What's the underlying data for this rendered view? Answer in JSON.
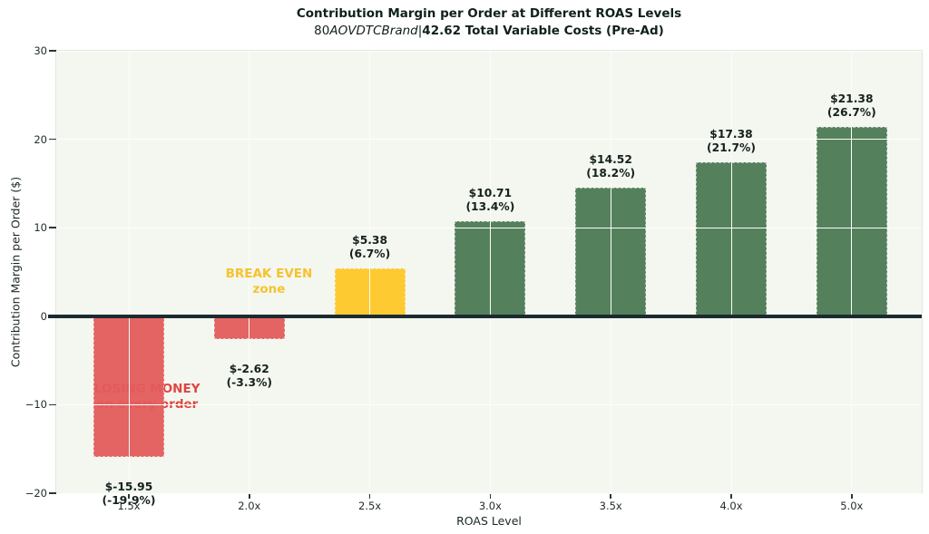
{
  "window": {
    "kind": "static-chart-figure",
    "background": "#ffffff"
  },
  "colors": {
    "plot_background": "#f4f7f0",
    "gridline": "#fcfefa",
    "zero_line": "#1b2b30",
    "bar_negative_red": "#e45c5c",
    "bar_breakeven_yellow": "#fec828",
    "bar_positive_green": "#4d7a55",
    "label_text": "#14211e",
    "tick_text": "#232e2b",
    "annotation_losing": "#e04440",
    "annotation_breakeven": "#f5c32e"
  },
  "chart_data": {
    "type": "bar",
    "title": "Contribution Margin per Order at Different ROAS Levels",
    "subtitle_segments": [
      {
        "text": "80",
        "style": "regular"
      },
      {
        "text": "AOVDTCBrand",
        "style": "italic"
      },
      {
        "text": "|",
        "style": "regular"
      },
      {
        "text": "42.62 Total Variable Costs (Pre-Ad)",
        "style": "bold"
      }
    ],
    "xlabel": "ROAS Level",
    "ylabel": "Contribution Margin per Order ($)",
    "categories": [
      "1.5x",
      "2.0x",
      "2.5x",
      "3.0x",
      "3.5x",
      "4.0x",
      "5.0x"
    ],
    "values": [
      -15.95,
      -2.62,
      5.38,
      10.71,
      14.52,
      17.38,
      21.38
    ],
    "value_labels": [
      "$-15.95",
      "$-2.62",
      "$5.38",
      "$10.71",
      "$14.52",
      "$17.38",
      "$21.38"
    ],
    "pct_labels": [
      "(-19.9%)",
      "(-3.3%)",
      "(6.7%)",
      "(13.4%)",
      "(18.2%)",
      "(21.7%)",
      "(26.7%)"
    ],
    "bar_colors": [
      "#e45c5c",
      "#e45c5c",
      "#fec828",
      "#4d7a55",
      "#4d7a55",
      "#4d7a55",
      "#4d7a55"
    ],
    "ylim": [
      -20,
      30
    ],
    "yticks": [
      -20,
      -10,
      0,
      10,
      20,
      30
    ],
    "ytick_labels": [
      "−20",
      "−10",
      "0",
      "10",
      "20",
      "30"
    ],
    "grid": true,
    "legend": null,
    "annotations": [
      {
        "lines": [
          "LOSING MONEY",
          "on every order"
        ],
        "color": "#e04440",
        "cat_x": 0.152,
        "y_value": -9.1,
        "layer": "behind-bars"
      },
      {
        "lines": [
          "BREAK EVEN",
          "zone"
        ],
        "color": "#f5c32e",
        "cat_x": 1.163,
        "y_value": 3.9,
        "layer": "front"
      }
    ]
  }
}
